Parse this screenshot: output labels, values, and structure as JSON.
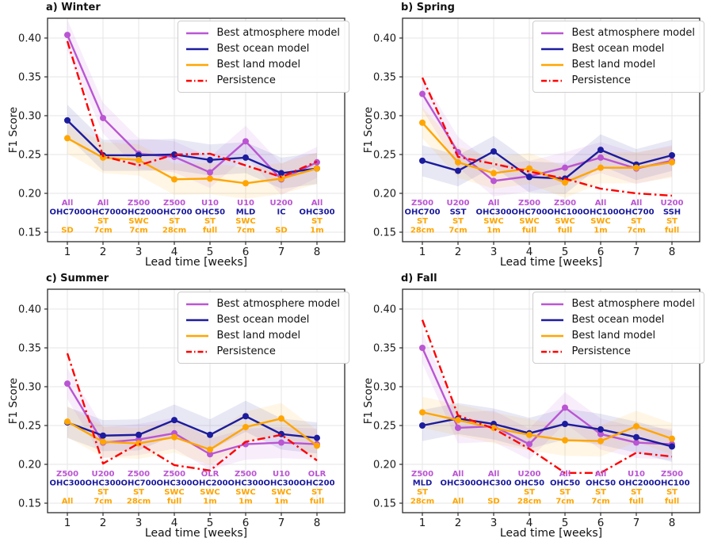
{
  "figure": {
    "xlabel": "Lead time [weeks]",
    "ylabel": "F1 Score",
    "xticks": [
      1,
      2,
      3,
      4,
      5,
      6,
      7,
      8
    ],
    "yticks": [
      0.15,
      0.2,
      0.25,
      0.3,
      0.35,
      0.4
    ],
    "ylim": [
      0.138,
      0.4255
    ],
    "grid": true,
    "legend_position": "upper right",
    "legend": [
      "Best atmosphere model",
      "Best ocean model",
      "Best land model",
      "Persistence"
    ],
    "colors": {
      "atmosphere": "#BA55D3",
      "ocean": "#1C1C9E",
      "land": "#FFA500",
      "persistence": "#FF0000",
      "grid": "#e6e6e6",
      "spine": "#2b2b2b",
      "tick_text": "#1a1a1a"
    },
    "band_halfwidth": 0.02
  },
  "chart_data": [
    {
      "panel": "a",
      "season": "Winter",
      "title": "a) Winter",
      "type": "line",
      "x": [
        1,
        2,
        3,
        4,
        5,
        6,
        7,
        8
      ],
      "series": [
        {
          "name": "Best atmosphere model",
          "key": "atmosphere",
          "band": true,
          "values": [
            0.404,
            0.297,
            0.251,
            0.247,
            0.227,
            0.267,
            0.218,
            0.24
          ]
        },
        {
          "name": "Best ocean model",
          "key": "ocean",
          "band": true,
          "values": [
            0.294,
            0.249,
            0.249,
            0.25,
            0.243,
            0.246,
            0.226,
            0.232
          ]
        },
        {
          "name": "Best land model",
          "key": "land",
          "band": true,
          "values": [
            0.271,
            0.246,
            0.243,
            0.218,
            0.219,
            0.213,
            0.219,
            0.232
          ]
        },
        {
          "name": "Persistence",
          "key": "persistence",
          "band": false,
          "linestyle": "dashdot",
          "values": [
            0.396,
            0.248,
            0.236,
            0.25,
            0.251,
            0.236,
            0.221,
            0.241
          ]
        }
      ],
      "annotations": {
        "atmosphere": [
          "All",
          "All",
          "Z500",
          "Z500",
          "U10",
          "U10",
          "U200",
          "All"
        ],
        "ocean": [
          "OHC700",
          "OHC700",
          "OHC200",
          "OHC700",
          "OHC50",
          "MLD",
          "IC",
          "OHC300"
        ],
        "land_row1": [
          "",
          "ST",
          "SWC",
          "ST",
          "ST",
          "SWC",
          "",
          "ST"
        ],
        "land_row2": [
          "SD",
          "7cm",
          "7cm",
          "28cm",
          "full",
          "7cm",
          "SD",
          "1m"
        ]
      }
    },
    {
      "panel": "b",
      "season": "Spring",
      "title": "b) Spring",
      "type": "line",
      "x": [
        1,
        2,
        3,
        4,
        5,
        6,
        7,
        8
      ],
      "series": [
        {
          "name": "Best atmosphere model",
          "key": "atmosphere",
          "band": true,
          "values": [
            0.328,
            0.253,
            0.216,
            0.222,
            0.233,
            0.246,
            0.232,
            0.242
          ]
        },
        {
          "name": "Best ocean model",
          "key": "ocean",
          "band": true,
          "values": [
            0.242,
            0.229,
            0.254,
            0.221,
            0.219,
            0.256,
            0.237,
            0.249
          ]
        },
        {
          "name": "Best land model",
          "key": "land",
          "band": true,
          "values": [
            0.291,
            0.24,
            0.226,
            0.232,
            0.214,
            0.233,
            0.233,
            0.24
          ]
        },
        {
          "name": "Persistence",
          "key": "persistence",
          "band": false,
          "linestyle": "dashdot",
          "values": [
            0.349,
            0.247,
            0.238,
            0.228,
            0.219,
            0.206,
            0.2,
            0.197
          ]
        }
      ],
      "annotations": {
        "atmosphere": [
          "Z500",
          "U200",
          "All",
          "Z500",
          "Z500",
          "All",
          "All",
          "U200"
        ],
        "ocean": [
          "OHC700",
          "SST",
          "OHC300",
          "OHC700",
          "OHC100",
          "OHC100",
          "OHC700",
          "SSH"
        ],
        "land_row1": [
          "ST",
          "ST",
          "SWC",
          "SWC",
          "SWC",
          "SWC",
          "ST",
          "ST"
        ],
        "land_row2": [
          "28cm",
          "7cm",
          "1m",
          "full",
          "full",
          "1m",
          "7cm",
          "full"
        ]
      }
    },
    {
      "panel": "c",
      "season": "Summer",
      "title": "c) Summer",
      "type": "line",
      "x": [
        1,
        2,
        3,
        4,
        5,
        6,
        7,
        8
      ],
      "series": [
        {
          "name": "Best atmosphere model",
          "key": "atmosphere",
          "band": true,
          "values": [
            0.304,
            0.228,
            0.232,
            0.24,
            0.213,
            0.226,
            0.228,
            0.226
          ]
        },
        {
          "name": "Best ocean model",
          "key": "ocean",
          "band": true,
          "values": [
            0.254,
            0.237,
            0.238,
            0.257,
            0.238,
            0.262,
            0.239,
            0.234
          ]
        },
        {
          "name": "Best land model",
          "key": "land",
          "band": true,
          "values": [
            0.255,
            0.229,
            0.227,
            0.235,
            0.219,
            0.248,
            0.259,
            0.224
          ]
        },
        {
          "name": "Persistence",
          "key": "persistence",
          "band": false,
          "linestyle": "dashdot",
          "values": [
            0.343,
            0.201,
            0.227,
            0.199,
            0.192,
            0.229,
            0.238,
            0.205
          ]
        }
      ],
      "annotations": {
        "atmosphere": [
          "Z500",
          "U200",
          "Z500",
          "Z500",
          "OLR",
          "Z500",
          "U10",
          "OLR"
        ],
        "ocean": [
          "OHC300",
          "OHC300",
          "OHC700",
          "OHC300",
          "OHC200",
          "OHC300",
          "OHC300",
          "OHC200"
        ],
        "land_row1": [
          "",
          "ST",
          "ST",
          "SWC",
          "SWC",
          "SWC",
          "SWC",
          "ST"
        ],
        "land_row2": [
          "All",
          "7cm",
          "28cm",
          "full",
          "1m",
          "1m",
          "1m",
          "full"
        ]
      }
    },
    {
      "panel": "d",
      "season": "Fall",
      "title": "d) Fall",
      "type": "line",
      "x": [
        1,
        2,
        3,
        4,
        5,
        6,
        7,
        8
      ],
      "series": [
        {
          "name": "Best atmosphere model",
          "key": "atmosphere",
          "band": true,
          "values": [
            0.35,
            0.247,
            0.249,
            0.226,
            0.273,
            0.239,
            0.228,
            0.226
          ]
        },
        {
          "name": "Best ocean model",
          "key": "ocean",
          "band": true,
          "values": [
            0.25,
            0.259,
            0.252,
            0.24,
            0.252,
            0.245,
            0.235,
            0.223
          ]
        },
        {
          "name": "Best land model",
          "key": "land",
          "band": true,
          "values": [
            0.267,
            0.257,
            0.247,
            0.238,
            0.231,
            0.23,
            0.249,
            0.233
          ]
        },
        {
          "name": "Persistence",
          "key": "persistence",
          "band": false,
          "linestyle": "dashdot",
          "values": [
            0.386,
            0.263,
            0.246,
            0.22,
            0.189,
            0.189,
            0.215,
            0.21
          ]
        }
      ],
      "annotations": {
        "atmosphere": [
          "Z500",
          "All",
          "All",
          "U200",
          "All",
          "All",
          "U10",
          "Z500"
        ],
        "ocean": [
          "MLD",
          "OHC300",
          "OHC300",
          "OHC50",
          "OHC50",
          "OHC50",
          "OHC200",
          "OHC100"
        ],
        "land_row1": [
          "ST",
          "",
          "",
          "ST",
          "ST",
          "ST",
          "ST",
          "ST"
        ],
        "land_row2": [
          "28cm",
          "All",
          "SD",
          "28cm",
          "7cm",
          "7cm",
          "full",
          "full"
        ]
      }
    }
  ]
}
